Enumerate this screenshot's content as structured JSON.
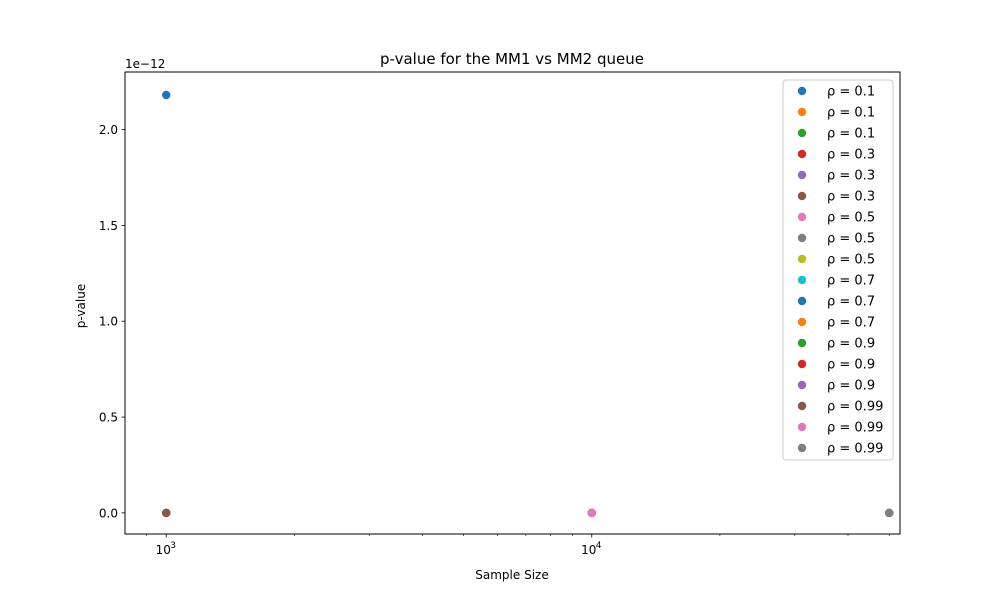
{
  "chart_data": {
    "type": "scatter",
    "title": "p-value for the MM1 vs MM2 queue",
    "xlabel": "Sample Size",
    "ylabel": "p-value",
    "xscale": "log",
    "xlim": [
      800,
      53000
    ],
    "ylim": [
      -1.1e-13,
      2.3e-12
    ],
    "y_offset_label": "1e−12",
    "x_ticks": [
      {
        "value": 1000,
        "base": "10",
        "exp": "3"
      },
      {
        "value": 10000,
        "base": "10",
        "exp": "4"
      }
    ],
    "y_ticks": [
      {
        "value": 0,
        "label": "0.0"
      },
      {
        "value": 5e-13,
        "label": "0.5"
      },
      {
        "value": 1e-12,
        "label": "1.0"
      },
      {
        "value": 1.5e-12,
        "label": "1.5"
      },
      {
        "value": 2e-12,
        "label": "2.0"
      }
    ],
    "grid": false,
    "legend_position": "upper right",
    "series": [
      {
        "name": "ρ = 0.1",
        "color": "#1f77b4",
        "x": [
          1000
        ],
        "y": [
          2.18e-12
        ]
      },
      {
        "name": "ρ = 0.1",
        "color": "#ff7f0e",
        "x": [
          10000
        ],
        "y": [
          0
        ]
      },
      {
        "name": "ρ = 0.1",
        "color": "#2ca02c",
        "x": [
          50000
        ],
        "y": [
          0
        ]
      },
      {
        "name": "ρ = 0.3",
        "color": "#d62728",
        "x": [
          1000
        ],
        "y": [
          0
        ]
      },
      {
        "name": "ρ = 0.3",
        "color": "#9467bd",
        "x": [
          10000
        ],
        "y": [
          0
        ]
      },
      {
        "name": "ρ = 0.3",
        "color": "#8c564b",
        "x": [
          50000
        ],
        "y": [
          0
        ]
      },
      {
        "name": "ρ = 0.5",
        "color": "#e377c2",
        "x": [
          1000
        ],
        "y": [
          0
        ]
      },
      {
        "name": "ρ = 0.5",
        "color": "#7f7f7f",
        "x": [
          10000
        ],
        "y": [
          0
        ]
      },
      {
        "name": "ρ = 0.5",
        "color": "#bcbd22",
        "x": [
          50000
        ],
        "y": [
          0
        ]
      },
      {
        "name": "ρ = 0.7",
        "color": "#17becf",
        "x": [
          1000
        ],
        "y": [
          0
        ]
      },
      {
        "name": "ρ = 0.7",
        "color": "#1f77b4",
        "x": [
          10000
        ],
        "y": [
          0
        ]
      },
      {
        "name": "ρ = 0.7",
        "color": "#ff7f0e",
        "x": [
          50000
        ],
        "y": [
          0
        ]
      },
      {
        "name": "ρ = 0.9",
        "color": "#2ca02c",
        "x": [
          1000
        ],
        "y": [
          0
        ]
      },
      {
        "name": "ρ = 0.9",
        "color": "#d62728",
        "x": [
          10000
        ],
        "y": [
          0
        ]
      },
      {
        "name": "ρ = 0.9",
        "color": "#9467bd",
        "x": [
          50000
        ],
        "y": [
          0
        ]
      },
      {
        "name": "ρ = 0.99",
        "color": "#8c564b",
        "x": [
          1000
        ],
        "y": [
          0
        ]
      },
      {
        "name": "ρ = 0.99",
        "color": "#e377c2",
        "x": [
          10000
        ],
        "y": [
          0
        ]
      },
      {
        "name": "ρ = 0.99",
        "color": "#7f7f7f",
        "x": [
          50000
        ],
        "y": [
          0
        ]
      }
    ]
  }
}
